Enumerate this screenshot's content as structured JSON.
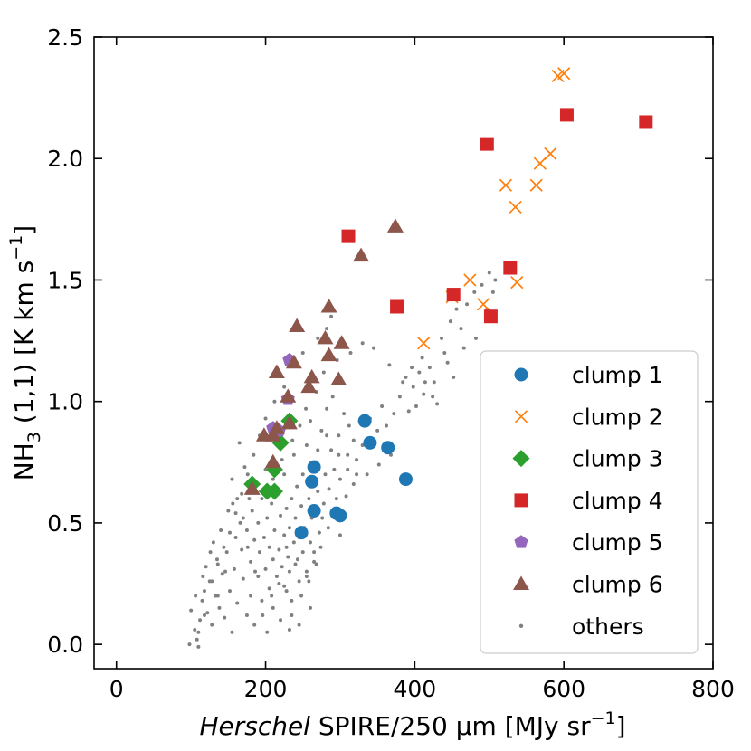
{
  "chart_data": {
    "type": "scatter",
    "xlabel": {
      "italic": "Herschel",
      "rest": " SPIRE/250 μm [MJy sr",
      "sup": "−1",
      "close": "]"
    },
    "ylabel": {
      "pre": "NH",
      "sub": "3",
      "mid": " (1,1) [K  km s",
      "sup": "−1",
      "close": "]"
    },
    "xlim": [
      -30,
      800
    ],
    "ylim": [
      -0.1,
      2.5
    ],
    "xticks": [
      0,
      200,
      400,
      600,
      800
    ],
    "yticks": [
      0.0,
      0.5,
      1.0,
      1.5,
      2.0,
      2.5
    ],
    "xtick_labels": [
      "0",
      "200",
      "400",
      "600",
      "800"
    ],
    "ytick_labels": [
      "0.0",
      "0.5",
      "1.0",
      "1.5",
      "2.0",
      "2.5"
    ],
    "legend_position": "lower-right",
    "series": [
      {
        "name": "clump 1",
        "marker": "circle",
        "color": "#1f77b4",
        "points": [
          [
            248,
            0.46
          ],
          [
            262,
            0.67
          ],
          [
            265,
            0.73
          ],
          [
            265,
            0.55
          ],
          [
            295,
            0.54
          ],
          [
            300,
            0.53
          ],
          [
            333,
            0.92
          ],
          [
            340,
            0.83
          ],
          [
            364,
            0.81
          ],
          [
            388,
            0.68
          ]
        ]
      },
      {
        "name": "clump 2",
        "marker": "x",
        "color": "#ff7f0e",
        "points": [
          [
            412,
            1.24
          ],
          [
            450,
            1.43
          ],
          [
            474,
            1.5
          ],
          [
            492,
            1.4
          ],
          [
            522,
            1.89
          ],
          [
            535,
            1.8
          ],
          [
            537,
            1.49
          ],
          [
            563,
            1.89
          ],
          [
            568,
            1.98
          ],
          [
            582,
            2.02
          ],
          [
            592,
            2.34
          ],
          [
            600,
            2.35
          ]
        ]
      },
      {
        "name": "clump 3",
        "marker": "diamond",
        "color": "#2ca02c",
        "points": [
          [
            182,
            0.66
          ],
          [
            202,
            0.63
          ],
          [
            212,
            0.63
          ],
          [
            212,
            0.72
          ],
          [
            220,
            0.83
          ],
          [
            232,
            0.92
          ]
        ]
      },
      {
        "name": "clump 4",
        "marker": "square",
        "color": "#d62728",
        "points": [
          [
            311,
            1.68
          ],
          [
            376,
            1.39
          ],
          [
            452,
            1.44
          ],
          [
            497,
            2.06
          ],
          [
            502,
            1.35
          ],
          [
            528,
            1.55
          ],
          [
            604,
            2.18
          ],
          [
            710,
            2.15
          ]
        ]
      },
      {
        "name": "clump 5",
        "marker": "pentagon",
        "color": "#9467bd",
        "points": [
          [
            210,
            0.89
          ],
          [
            218,
            0.88
          ],
          [
            230,
            1.01
          ],
          [
            232,
            1.17
          ]
        ]
      },
      {
        "name": "clump 6",
        "marker": "triangle",
        "color": "#8c564b",
        "points": [
          [
            182,
            0.64
          ],
          [
            198,
            0.86
          ],
          [
            210,
            0.75
          ],
          [
            210,
            0.86
          ],
          [
            215,
            0.89
          ],
          [
            215,
            1.12
          ],
          [
            230,
            1.02
          ],
          [
            232,
            0.91
          ],
          [
            238,
            1.16
          ],
          [
            242,
            1.31
          ],
          [
            258,
            1.06
          ],
          [
            262,
            1.1
          ],
          [
            280,
            1.26
          ],
          [
            285,
            1.19
          ],
          [
            285,
            1.39
          ],
          [
            298,
            1.09
          ],
          [
            302,
            1.24
          ],
          [
            328,
            1.6
          ],
          [
            374,
            1.72
          ]
        ]
      },
      {
        "name": "others",
        "marker": "dot",
        "color": "#808080",
        "points": [
          [
            98,
            0.0
          ],
          [
            100,
            0.14
          ],
          [
            105,
            0.06
          ],
          [
            108,
            0.02
          ],
          [
            110,
            -0.01
          ],
          [
            112,
            0.1
          ],
          [
            115,
            0.18
          ],
          [
            118,
            0.22
          ],
          [
            120,
            0.32
          ],
          [
            122,
            0.13
          ],
          [
            125,
            0.26
          ],
          [
            128,
            0.08
          ],
          [
            130,
            0.42
          ],
          [
            133,
            0.2
          ],
          [
            135,
            0.35
          ],
          [
            138,
            0.15
          ],
          [
            140,
            0.47
          ],
          [
            142,
            0.29
          ],
          [
            145,
            0.11
          ],
          [
            148,
            0.38
          ],
          [
            150,
            0.55
          ],
          [
            152,
            0.22
          ],
          [
            155,
            0.05
          ],
          [
            155,
            0.68
          ],
          [
            158,
            0.31
          ],
          [
            160,
            0.44
          ],
          [
            162,
            0.17
          ],
          [
            162,
            0.6
          ],
          [
            165,
            0.83
          ],
          [
            168,
            0.39
          ],
          [
            170,
            0.27
          ],
          [
            170,
            0.52
          ],
          [
            172,
            0.73
          ],
          [
            175,
            0.12
          ],
          [
            175,
            0.47
          ],
          [
            178,
            0.6
          ],
          [
            180,
            0.34
          ],
          [
            180,
            0.2
          ],
          [
            182,
            0.55
          ],
          [
            185,
            0.43
          ],
          [
            185,
            0.08
          ],
          [
            188,
            0.66
          ],
          [
            190,
            0.28
          ],
          [
            190,
            0.5
          ],
          [
            192,
            0.38
          ],
          [
            195,
            0.18
          ],
          [
            195,
            0.6
          ],
          [
            198,
            0.44
          ],
          [
            200,
            0.31
          ],
          [
            200,
            0.72
          ],
          [
            202,
            0.05
          ],
          [
            202,
            0.52
          ],
          [
            205,
            0.23
          ],
          [
            205,
            0.4
          ],
          [
            208,
            0.58
          ],
          [
            210,
            0.35
          ],
          [
            210,
            0.15
          ],
          [
            212,
            0.47
          ],
          [
            215,
            0.62
          ],
          [
            215,
            0.28
          ],
          [
            218,
            0.39
          ],
          [
            220,
            0.53
          ],
          [
            220,
            0.1
          ],
          [
            222,
            0.32
          ],
          [
            225,
            0.45
          ],
          [
            225,
            0.7
          ],
          [
            228,
            0.22
          ],
          [
            228,
            0.56
          ],
          [
            230,
            0.36
          ],
          [
            232,
            0.48
          ],
          [
            232,
            0.3
          ],
          [
            235,
            0.6
          ],
          [
            235,
            0.18
          ],
          [
            238,
            0.42
          ],
          [
            238,
            0.78
          ],
          [
            240,
            0.33
          ],
          [
            240,
            0.52
          ],
          [
            242,
            0.65
          ],
          [
            245,
            0.26
          ],
          [
            245,
            0.44
          ],
          [
            248,
            0.57
          ],
          [
            250,
            0.38
          ],
          [
            250,
            0.7
          ],
          [
            252,
            0.48
          ],
          [
            255,
            0.82
          ],
          [
            255,
            0.3
          ],
          [
            258,
            0.6
          ],
          [
            260,
            0.42
          ],
          [
            260,
            0.92
          ],
          [
            262,
            0.52
          ],
          [
            265,
            0.34
          ],
          [
            268,
            0.75
          ],
          [
            270,
            0.63
          ],
          [
            272,
            0.46
          ],
          [
            275,
            0.88
          ],
          [
            278,
            0.58
          ],
          [
            280,
            0.7
          ],
          [
            282,
            0.97
          ],
          [
            285,
            0.64
          ],
          [
            288,
            0.8
          ],
          [
            290,
            1.02
          ],
          [
            292,
            0.72
          ],
          [
            295,
            0.6
          ],
          [
            298,
            0.86
          ],
          [
            300,
            0.68
          ],
          [
            305,
            0.95
          ],
          [
            310,
            0.78
          ],
          [
            312,
            0.9
          ],
          [
            318,
            0.84
          ],
          [
            322,
            0.7
          ],
          [
            330,
            0.82
          ],
          [
            340,
            0.93
          ],
          [
            350,
            0.88
          ],
          [
            356,
            0.98
          ],
          [
            362,
            0.9
          ],
          [
            372,
            0.95
          ],
          [
            380,
            1.02
          ],
          [
            388,
            1.1
          ],
          [
            392,
            0.96
          ],
          [
            398,
            1.06
          ],
          [
            402,
            0.98
          ],
          [
            406,
            1.12
          ],
          [
            410,
            1.18
          ],
          [
            414,
            1.08
          ],
          [
            420,
            1.14
          ],
          [
            424,
            1.02
          ],
          [
            430,
            0.99
          ],
          [
            436,
            1.26
          ],
          [
            440,
            1.2
          ],
          [
            448,
            1.33
          ],
          [
            456,
            1.38
          ],
          [
            462,
            1.3
          ],
          [
            470,
            1.4
          ],
          [
            480,
            1.45
          ],
          [
            490,
            1.48
          ],
          [
            500,
            1.53
          ],
          [
            505,
            1.45
          ],
          [
            288,
            1.35
          ],
          [
            282,
            1.3
          ],
          [
            270,
            1.26
          ],
          [
            250,
            1.2
          ],
          [
            240,
            1.15
          ],
          [
            225,
            1.06
          ],
          [
            212,
            1.0
          ],
          [
            200,
            0.93
          ],
          [
            192,
            0.86
          ],
          [
            184,
            0.78
          ],
          [
            176,
            0.7
          ],
          [
            168,
            0.62
          ],
          [
            160,
            0.54
          ],
          [
            152,
            0.46
          ],
          [
            144,
            0.4
          ],
          [
            136,
            0.33
          ],
          [
            128,
            0.26
          ],
          [
            118,
            0.12
          ],
          [
            110,
            0.05
          ],
          [
            225,
            0.24
          ],
          [
            235,
            0.12
          ],
          [
            248,
            0.2
          ],
          [
            258,
            0.26
          ],
          [
            268,
            0.33
          ],
          [
            260,
            0.15
          ],
          [
            245,
            0.08
          ],
          [
            232,
            0.06
          ],
          [
            274,
            0.4
          ],
          [
            284,
            0.48
          ],
          [
            296,
            0.54
          ],
          [
            308,
            0.61
          ],
          [
            318,
            0.66
          ],
          [
            276,
            0.52
          ],
          [
            300,
            0.45
          ],
          [
            265,
            0.38
          ],
          [
            255,
            0.28
          ],
          [
            243,
            0.35
          ],
          [
            228,
            0.4
          ],
          [
            218,
            0.25
          ],
          [
            208,
            0.2
          ],
          [
            196,
            0.12
          ],
          [
            186,
            0.3
          ],
          [
            176,
            0.4
          ],
          [
            166,
            0.5
          ],
          [
            156,
            0.58
          ],
          [
            146,
            0.3
          ],
          [
            136,
            0.2
          ],
          [
            126,
            0.38
          ],
          [
            116,
            0.28
          ],
          [
            106,
            0.2
          ],
          [
            210,
            0.68
          ],
          [
            222,
            0.76
          ],
          [
            236,
            0.84
          ],
          [
            246,
            0.9
          ],
          [
            254,
            0.97
          ],
          [
            268,
            1.04
          ],
          [
            278,
            1.12
          ],
          [
            296,
            1.17
          ],
          [
            314,
            1.2
          ],
          [
            330,
            1.24
          ],
          [
            345,
            1.22
          ],
          [
            366,
            1.15
          ],
          [
            384,
            1.08
          ],
          [
            396,
            1.14
          ],
          [
            412,
            1.03
          ],
          [
            426,
            1.08
          ],
          [
            444,
            1.16
          ],
          [
            452,
            1.1
          ],
          [
            466,
            1.22
          ],
          [
            482,
            1.26
          ],
          [
            497,
            1.38
          ],
          [
            508,
            1.5
          ],
          [
            270,
            0.8
          ],
          [
            282,
            0.86
          ],
          [
            298,
            0.78
          ],
          [
            310,
            0.72
          ],
          [
            322,
            0.76
          ],
          [
            336,
            0.7
          ],
          [
            352,
            0.74
          ],
          [
            368,
            0.78
          ]
        ]
      }
    ]
  }
}
